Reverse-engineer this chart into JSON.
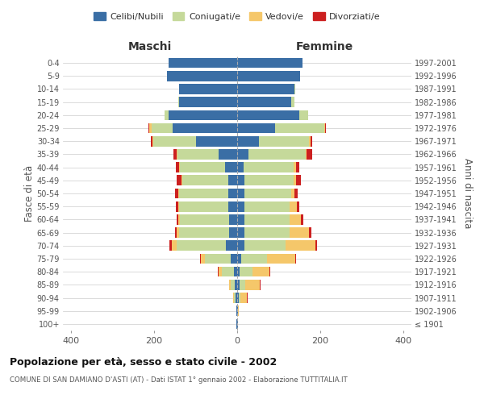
{
  "age_groups": [
    "100+",
    "95-99",
    "90-94",
    "85-89",
    "80-84",
    "75-79",
    "70-74",
    "65-69",
    "60-64",
    "55-59",
    "50-54",
    "45-49",
    "40-44",
    "35-39",
    "30-34",
    "25-29",
    "20-24",
    "15-19",
    "10-14",
    "5-9",
    "0-4"
  ],
  "birth_years": [
    "≤ 1901",
    "1902-1906",
    "1907-1911",
    "1912-1916",
    "1917-1921",
    "1922-1926",
    "1927-1931",
    "1932-1936",
    "1937-1941",
    "1942-1946",
    "1947-1951",
    "1952-1956",
    "1957-1961",
    "1962-1966",
    "1967-1971",
    "1972-1976",
    "1977-1981",
    "1982-1986",
    "1987-1991",
    "1992-1996",
    "1997-2001"
  ],
  "maschi": {
    "celibi": [
      1,
      1,
      3,
      5,
      8,
      15,
      28,
      20,
      20,
      22,
      22,
      22,
      30,
      45,
      100,
      155,
      165,
      140,
      140,
      170,
      165
    ],
    "coniugati": [
      0,
      0,
      5,
      10,
      28,
      62,
      118,
      120,
      118,
      118,
      118,
      110,
      108,
      98,
      102,
      52,
      10,
      2,
      0,
      0,
      0
    ],
    "vedovi": [
      0,
      0,
      2,
      5,
      8,
      10,
      12,
      5,
      3,
      2,
      2,
      2,
      2,
      2,
      2,
      5,
      0,
      0,
      0,
      0,
      0
    ],
    "divorziati": [
      0,
      0,
      0,
      0,
      2,
      2,
      5,
      5,
      5,
      5,
      8,
      12,
      8,
      8,
      5,
      2,
      0,
      0,
      0,
      0,
      0
    ]
  },
  "femmine": {
    "nubili": [
      1,
      2,
      3,
      5,
      5,
      10,
      18,
      18,
      18,
      18,
      18,
      18,
      15,
      28,
      52,
      92,
      150,
      130,
      138,
      152,
      158
    ],
    "coniugate": [
      0,
      0,
      5,
      15,
      32,
      62,
      98,
      108,
      108,
      108,
      112,
      118,
      122,
      138,
      122,
      118,
      22,
      8,
      2,
      0,
      0
    ],
    "vedove": [
      0,
      2,
      15,
      35,
      40,
      68,
      72,
      48,
      28,
      18,
      8,
      6,
      4,
      2,
      2,
      2,
      0,
      0,
      0,
      0,
      0
    ],
    "divorziate": [
      0,
      0,
      2,
      2,
      3,
      2,
      5,
      5,
      5,
      5,
      8,
      12,
      8,
      12,
      5,
      2,
      0,
      0,
      0,
      0,
      0
    ]
  },
  "colors": {
    "celibi": "#3a6ea5",
    "coniugati": "#c5d99a",
    "vedovi": "#f5c76a",
    "divorziati": "#cc2020"
  },
  "xlim": 420,
  "title": "Popolazione per età, sesso e stato civile - 2002",
  "subtitle": "COMUNE DI SAN DAMIANO D'ASTI (AT) - Dati ISTAT 1° gennaio 2002 - Elaborazione TUTTITALIA.IT",
  "ylabel_left": "Fasce di età",
  "ylabel_right": "Anni di nascita",
  "xlabel_left": "Maschi",
  "xlabel_right": "Femmine",
  "legend_labels": [
    "Celibi/Nubili",
    "Coniugati/e",
    "Vedovi/e",
    "Divorziati/e"
  ],
  "background_color": "#ffffff",
  "grid_color": "#cccccc"
}
